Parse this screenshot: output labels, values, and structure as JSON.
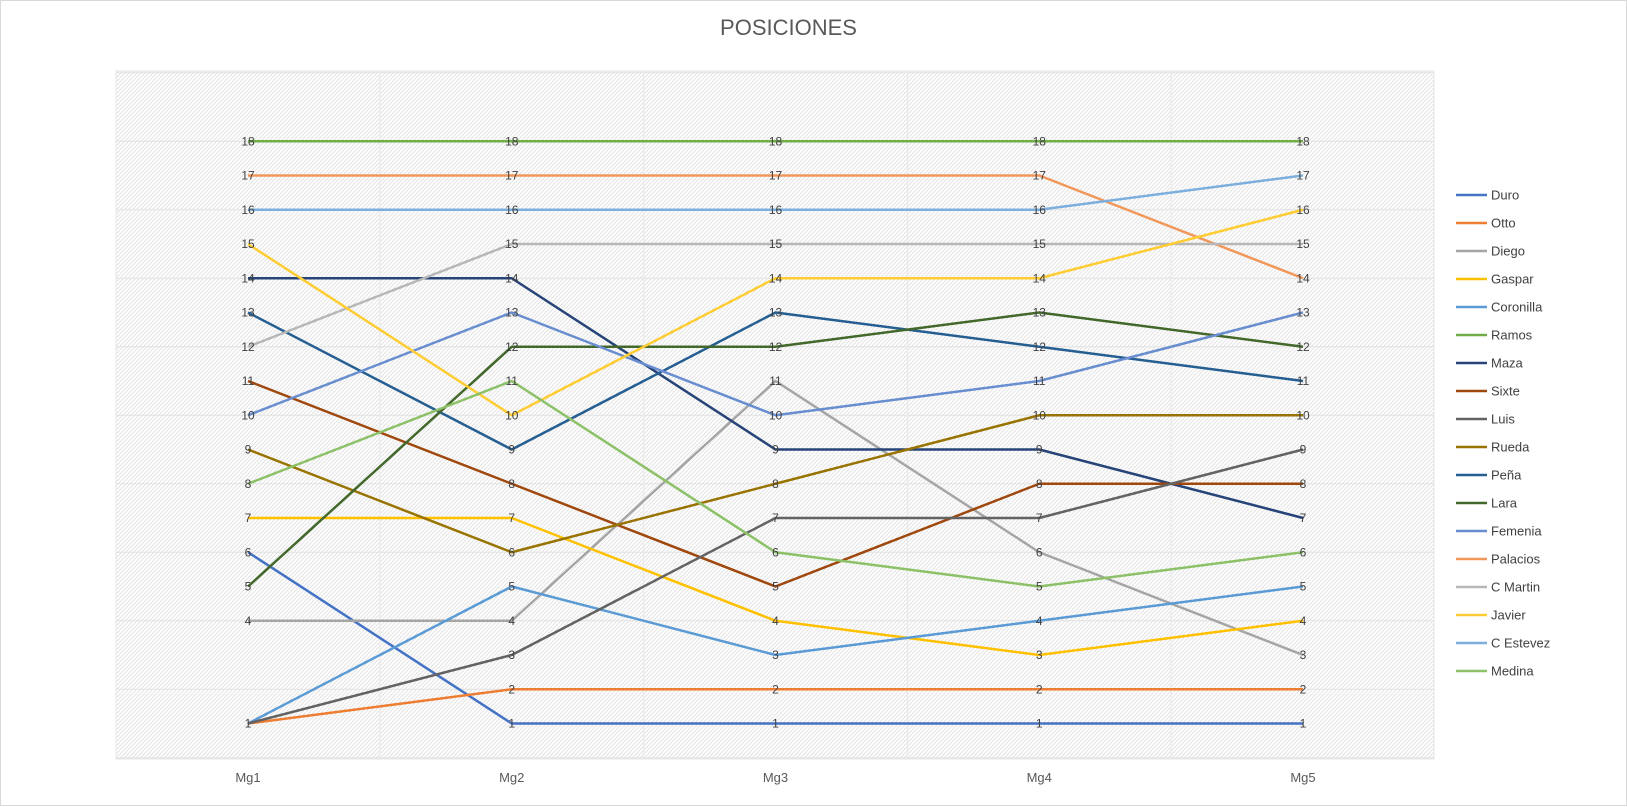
{
  "chart_data": {
    "type": "line",
    "title": "POSICIONES",
    "xlabel": "",
    "ylabel": "",
    "categories": [
      "Mg1",
      "Mg2",
      "Mg3",
      "Mg4",
      "Mg5"
    ],
    "ylim": [
      0,
      20
    ],
    "grid": true,
    "legend_position": "right",
    "data_labels": true,
    "series": [
      {
        "name": "Duro",
        "color": "#4472C4",
        "values": [
          6,
          1,
          1,
          1,
          1
        ]
      },
      {
        "name": "Otto",
        "color": "#ED7D31",
        "values": [
          1,
          2,
          2,
          2,
          2
        ]
      },
      {
        "name": "Diego",
        "color": "#A5A5A5",
        "values": [
          4,
          4,
          11,
          6,
          3
        ]
      },
      {
        "name": "Gaspar",
        "color": "#FFC000",
        "values": [
          7,
          7,
          4,
          3,
          4
        ]
      },
      {
        "name": "Coronilla",
        "color": "#5B9BD5",
        "values": [
          1,
          5,
          3,
          4,
          5
        ]
      },
      {
        "name": "Ramos",
        "color": "#70AD47",
        "values": [
          18,
          18,
          18,
          18,
          18
        ]
      },
      {
        "name": "Maza",
        "color": "#264478",
        "values": [
          14,
          14,
          9,
          9,
          7
        ]
      },
      {
        "name": "Sixte",
        "color": "#9E480E",
        "values": [
          11,
          8,
          5,
          8,
          8
        ]
      },
      {
        "name": "Luis",
        "color": "#636363",
        "values": [
          1,
          3,
          7,
          7,
          9
        ]
      },
      {
        "name": "Rueda",
        "color": "#997300",
        "values": [
          9,
          6,
          8,
          10,
          10
        ]
      },
      {
        "name": "Peña",
        "color": "#255E91",
        "values": [
          13,
          9,
          13,
          12,
          11
        ]
      },
      {
        "name": "Lara",
        "color": "#43682B",
        "values": [
          5,
          12,
          12,
          13,
          12
        ]
      },
      {
        "name": "Femenia",
        "color": "#698ED0",
        "values": [
          10,
          13,
          10,
          11,
          13
        ]
      },
      {
        "name": "Palacios",
        "color": "#F1975A",
        "values": [
          17,
          17,
          17,
          17,
          14
        ]
      },
      {
        "name": "C Martin",
        "color": "#B7B7B7",
        "values": [
          12,
          15,
          15,
          15,
          15
        ]
      },
      {
        "name": "Javier",
        "color": "#FFCD33",
        "values": [
          15,
          10,
          14,
          14,
          16
        ]
      },
      {
        "name": "C Estevez",
        "color": "#7CAFDD",
        "values": [
          16,
          16,
          16,
          16,
          17
        ]
      },
      {
        "name": "Medina",
        "color": "#8CC168",
        "values": [
          8,
          11,
          6,
          5,
          6
        ]
      }
    ]
  }
}
